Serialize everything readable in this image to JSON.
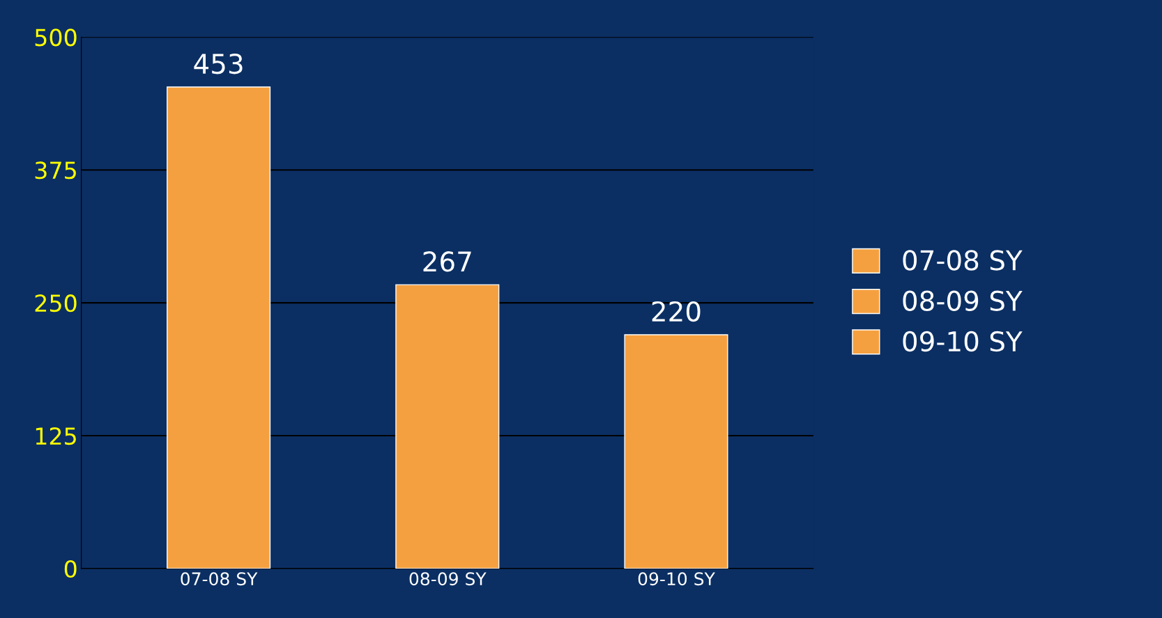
{
  "chart_data": {
    "type": "bar",
    "categories": [
      "07-08 SY",
      "08-09 SY",
      "09-10 SY"
    ],
    "series": [
      {
        "name": "07-08 SY",
        "color": "#f5a040",
        "values": [
          453,
          null,
          null
        ]
      },
      {
        "name": "08-09 SY",
        "color": "#f5a040",
        "values": [
          null,
          267,
          null
        ]
      },
      {
        "name": "09-10 SY",
        "color": "#f5a040",
        "values": [
          null,
          null,
          220
        ]
      }
    ],
    "ylim": [
      0,
      500
    ],
    "yticks": [
      0,
      125,
      250,
      375,
      500
    ],
    "grid": "y",
    "legend": "right",
    "data_labels": true
  }
}
